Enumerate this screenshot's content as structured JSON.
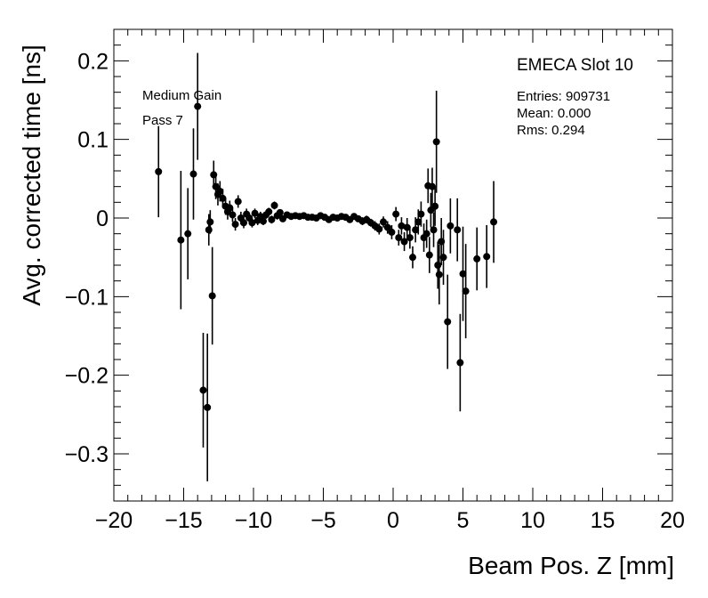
{
  "chart_data": {
    "type": "scatter",
    "xlabel": "Beam Pos. Z [mm]",
    "ylabel": "Avg. corrected time [ns]",
    "xlim": [
      -20,
      20
    ],
    "ylim": [
      -0.36,
      0.24
    ],
    "x_ticks": [
      -20,
      -15,
      -10,
      -5,
      0,
      5,
      10,
      15,
      20
    ],
    "x_tick_labels": [
      "−20",
      "−15",
      "−10",
      "−5",
      "0",
      "5",
      "10",
      "15",
      "20"
    ],
    "y_ticks": [
      0.2,
      0.1,
      0,
      -0.1,
      -0.2,
      -0.3
    ],
    "y_tick_labels": [
      "0.2",
      "0.1",
      "0",
      "−0.1",
      "−0.2",
      "−0.3"
    ],
    "grid": false,
    "marker_color": "#000000",
    "annotations": {
      "gain": "Medium Gain",
      "pass": "Pass 7",
      "slot": "EMECA Slot 10",
      "entries": "Entries: 909731",
      "mean": "Mean: 0.000",
      "rms": "Rms: 0.294"
    },
    "series": [
      {
        "points": [
          {
            "x": -16.8,
            "y": 0.059,
            "err": 0.058
          },
          {
            "x": -15.2,
            "y": -0.028,
            "err": 0.088
          },
          {
            "x": -14.7,
            "y": -0.02,
            "err": 0.058
          },
          {
            "x": -14.3,
            "y": 0.056,
            "err": 0.058
          },
          {
            "x": -14.0,
            "y": 0.142,
            "err": 0.068
          },
          {
            "x": -13.6,
            "y": -0.219,
            "err": 0.073
          },
          {
            "x": -13.3,
            "y": -0.241,
            "err": 0.094
          },
          {
            "x": -13.2,
            "y": -0.015,
            "err": 0.02
          },
          {
            "x": -13.1,
            "y": -0.005,
            "err": 0.015
          },
          {
            "x": -12.95,
            "y": -0.099,
            "err": 0.062
          },
          {
            "x": -12.85,
            "y": 0.055,
            "err": 0.018
          },
          {
            "x": -12.7,
            "y": 0.04,
            "err": 0.016
          },
          {
            "x": -12.55,
            "y": 0.03,
            "err": 0.014
          },
          {
            "x": -12.4,
            "y": 0.034,
            "err": 0.013
          },
          {
            "x": -12.2,
            "y": 0.025,
            "err": 0.012
          },
          {
            "x": -12.0,
            "y": 0.015,
            "err": 0.011
          },
          {
            "x": -11.85,
            "y": 0.008,
            "err": 0.01
          },
          {
            "x": -11.7,
            "y": 0.013,
            "err": 0.009
          },
          {
            "x": -11.5,
            "y": 0.004,
            "err": 0.009
          },
          {
            "x": -11.3,
            "y": -0.008,
            "err": 0.008
          },
          {
            "x": -11.1,
            "y": 0.021,
            "err": 0.008
          },
          {
            "x": -10.9,
            "y": 0.0,
            "err": 0.008
          },
          {
            "x": -10.7,
            "y": -0.006,
            "err": 0.007
          },
          {
            "x": -10.5,
            "y": 0.005,
            "err": 0.007
          },
          {
            "x": -10.3,
            "y": 0.0,
            "err": 0.007
          },
          {
            "x": -10.1,
            "y": -0.006,
            "err": 0.006
          },
          {
            "x": -9.9,
            "y": 0.006,
            "err": 0.006
          },
          {
            "x": -9.7,
            "y": -0.003,
            "err": 0.006
          },
          {
            "x": -9.5,
            "y": 0.002,
            "err": 0.006
          },
          {
            "x": -9.3,
            "y": -0.004,
            "err": 0.005
          },
          {
            "x": -9.1,
            "y": 0.004,
            "err": 0.005
          },
          {
            "x": -8.9,
            "y": 0.008,
            "err": 0.005
          },
          {
            "x": -8.7,
            "y": -0.002,
            "err": 0.005
          },
          {
            "x": -8.5,
            "y": 0.016,
            "err": 0.005
          },
          {
            "x": -8.3,
            "y": 0.003,
            "err": 0.005
          },
          {
            "x": -8.1,
            "y": 0.007,
            "err": 0.004
          },
          {
            "x": -7.9,
            "y": -0.001,
            "err": 0.004
          },
          {
            "x": -7.6,
            "y": 0.004,
            "err": 0.004
          },
          {
            "x": -7.3,
            "y": 0.002,
            "err": 0.004
          },
          {
            "x": -7.0,
            "y": 0.003,
            "err": 0.004
          },
          {
            "x": -6.7,
            "y": 0.002,
            "err": 0.004
          },
          {
            "x": -6.4,
            "y": 0.003,
            "err": 0.004
          },
          {
            "x": -6.1,
            "y": 0.001,
            "err": 0.004
          },
          {
            "x": -5.8,
            "y": 0.001,
            "err": 0.004
          },
          {
            "x": -5.5,
            "y": 0.0,
            "err": 0.004
          },
          {
            "x": -5.2,
            "y": 0.003,
            "err": 0.004
          },
          {
            "x": -4.9,
            "y": 0.001,
            "err": 0.004
          },
          {
            "x": -4.6,
            "y": -0.002,
            "err": 0.004
          },
          {
            "x": -4.3,
            "y": 0.001,
            "err": 0.004
          },
          {
            "x": -4.0,
            "y": 0.0,
            "err": 0.004
          },
          {
            "x": -3.7,
            "y": 0.002,
            "err": 0.004
          },
          {
            "x": -3.4,
            "y": 0.001,
            "err": 0.004
          },
          {
            "x": -3.1,
            "y": -0.002,
            "err": 0.004
          },
          {
            "x": -2.8,
            "y": 0.002,
            "err": 0.004
          },
          {
            "x": -2.5,
            "y": -0.001,
            "err": 0.004
          },
          {
            "x": -2.2,
            "y": -0.004,
            "err": 0.005
          },
          {
            "x": -1.9,
            "y": -0.002,
            "err": 0.005
          },
          {
            "x": -1.6,
            "y": -0.006,
            "err": 0.005
          },
          {
            "x": -1.3,
            "y": -0.01,
            "err": 0.006
          },
          {
            "x": -1.0,
            "y": -0.014,
            "err": 0.007
          },
          {
            "x": -0.7,
            "y": -0.005,
            "err": 0.007
          },
          {
            "x": -0.4,
            "y": -0.012,
            "err": 0.008
          },
          {
            "x": -0.1,
            "y": -0.018,
            "err": 0.009
          },
          {
            "x": 0.2,
            "y": 0.005,
            "err": 0.009
          },
          {
            "x": 0.4,
            "y": -0.025,
            "err": 0.01
          },
          {
            "x": 0.6,
            "y": -0.01,
            "err": 0.011
          },
          {
            "x": 0.8,
            "y": -0.03,
            "err": 0.012
          },
          {
            "x": 1.0,
            "y": -0.012,
            "err": 0.012
          },
          {
            "x": 1.2,
            "y": -0.025,
            "err": 0.014
          },
          {
            "x": 1.4,
            "y": -0.05,
            "err": 0.014
          },
          {
            "x": 1.6,
            "y": -0.015,
            "err": 0.016
          },
          {
            "x": 1.8,
            "y": -0.005,
            "err": 0.016
          },
          {
            "x": 2.0,
            "y": 0.005,
            "err": 0.016
          },
          {
            "x": 2.2,
            "y": -0.025,
            "err": 0.018
          },
          {
            "x": 2.4,
            "y": -0.02,
            "err": 0.018
          },
          {
            "x": 2.5,
            "y": 0.041,
            "err": 0.022
          },
          {
            "x": 2.6,
            "y": -0.047,
            "err": 0.023
          },
          {
            "x": 2.7,
            "y": 0.01,
            "err": 0.022
          },
          {
            "x": 2.8,
            "y": 0.04,
            "err": 0.024
          },
          {
            "x": 2.9,
            "y": -0.015,
            "err": 0.022
          },
          {
            "x": 3.0,
            "y": 0.015,
            "err": 0.025
          },
          {
            "x": 3.1,
            "y": 0.097,
            "err": 0.065
          },
          {
            "x": 3.2,
            "y": -0.06,
            "err": 0.03
          },
          {
            "x": 3.3,
            "y": -0.072,
            "err": 0.038
          },
          {
            "x": 3.45,
            "y": -0.03,
            "err": 0.03
          },
          {
            "x": 3.6,
            "y": -0.05,
            "err": 0.035
          },
          {
            "x": 3.9,
            "y": -0.132,
            "err": 0.06
          },
          {
            "x": 4.1,
            "y": -0.01,
            "err": 0.035
          },
          {
            "x": 4.6,
            "y": -0.015,
            "err": 0.04
          },
          {
            "x": 4.8,
            "y": -0.184,
            "err": 0.062
          },
          {
            "x": 5.0,
            "y": -0.071,
            "err": 0.06
          },
          {
            "x": 5.2,
            "y": -0.093,
            "err": 0.06
          },
          {
            "x": 6.0,
            "y": -0.052,
            "err": 0.04
          },
          {
            "x": 6.7,
            "y": -0.049,
            "err": 0.04
          },
          {
            "x": 7.2,
            "y": -0.005,
            "err": 0.052
          }
        ]
      }
    ]
  }
}
